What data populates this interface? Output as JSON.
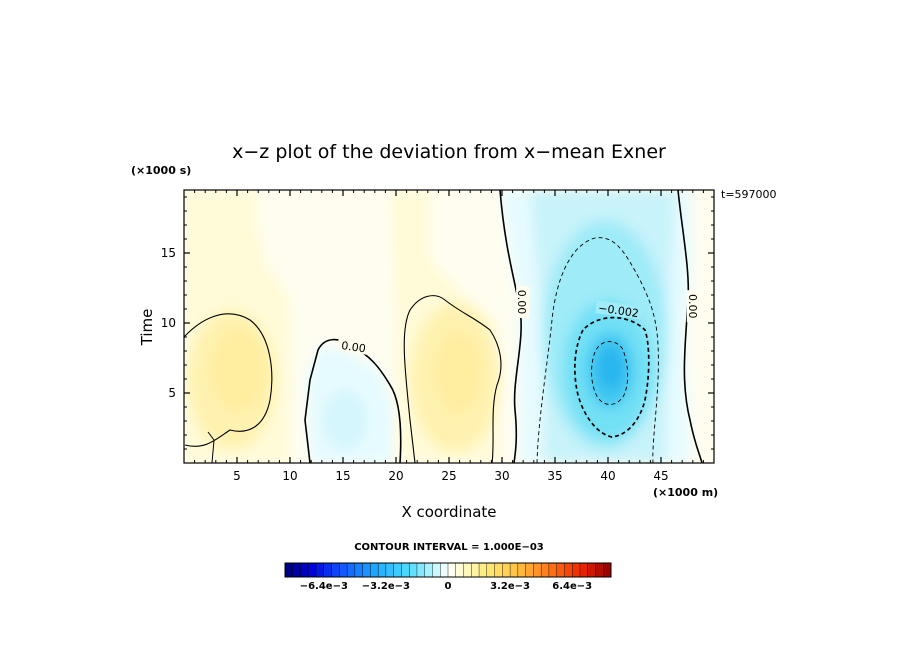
{
  "chart_data": {
    "type": "heatmap",
    "title": "x−z plot of the deviation from x−mean Exner",
    "xlabel": "X coordinate",
    "ylabel": "Time",
    "x_unit": "(×1000 m)",
    "y_unit": "(×1000 s)",
    "timestamp": "t=597000",
    "xlim": [
      0,
      50
    ],
    "ylim": [
      0,
      19.5
    ],
    "x_ticks": [
      5,
      10,
      15,
      20,
      25,
      30,
      35,
      40,
      45
    ],
    "y_ticks": [
      5,
      10,
      15
    ],
    "contour_interval_text": "CONTOUR INTERVAL = 1.000E−03",
    "contour_labels": [
      {
        "text": "0.00",
        "x": 16,
        "y": 8.3
      },
      {
        "text": "0.00",
        "x": 31.9,
        "y": 11.5
      },
      {
        "text": "0.00",
        "x": 48,
        "y": 11.2
      },
      {
        "text": "−0.002",
        "x": 41,
        "y": 10.9
      }
    ],
    "colorbar": {
      "tick_labels": [
        "−6.4e−3",
        "−3.2e−3",
        "0",
        "3.2e−3",
        "6.4e−3"
      ],
      "tick_values": [
        -0.0064,
        -0.0032,
        0,
        0.0032,
        0.0064
      ],
      "range": [
        -0.0084,
        0.0084
      ],
      "levels": 42
    },
    "features": [
      {
        "kind": "positive",
        "center": [
          5,
          6.5
        ],
        "peak": 0.0013
      },
      {
        "kind": "negative",
        "center": [
          16,
          4
        ],
        "peak": -0.0006
      },
      {
        "kind": "positive",
        "center": [
          25.5,
          6.5
        ],
        "peak": 0.0012
      },
      {
        "kind": "negative",
        "center": [
          40,
          7
        ],
        "peak": -0.0043
      }
    ]
  }
}
